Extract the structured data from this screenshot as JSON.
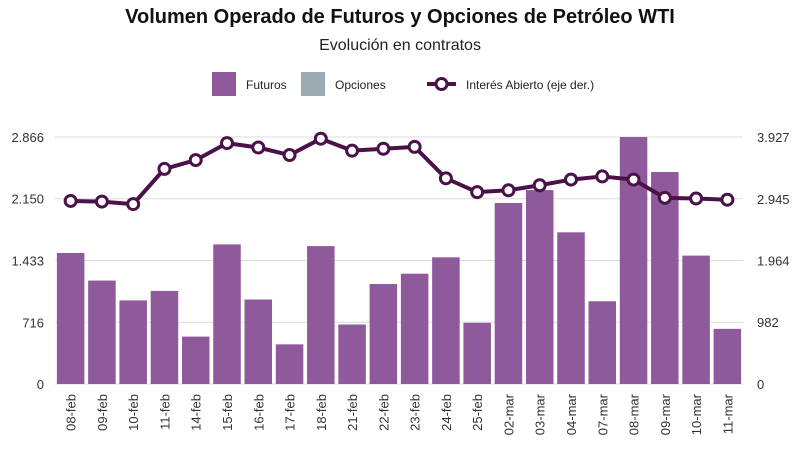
{
  "chart_data": {
    "type": "bar",
    "title": "Volumen Operado de Futuros y Opciones de Petróleo WTI",
    "subtitle": "Evolución en contratos",
    "categories": [
      "08-feb",
      "09-feb",
      "10-feb",
      "11-feb",
      "14-feb",
      "15-feb",
      "16-feb",
      "17-feb",
      "18-feb",
      "21-feb",
      "22-feb",
      "23-feb",
      "24-feb",
      "25-feb",
      "02-mar",
      "03-mar",
      "04-mar",
      "07-mar",
      "08-mar",
      "09-mar",
      "10-mar",
      "11-mar"
    ],
    "series": [
      {
        "name": "Futuros",
        "type": "bar",
        "axis": "left",
        "color": "#8e5a9b",
        "values": [
          1520,
          1200,
          970,
          1080,
          550,
          1620,
          980,
          460,
          1600,
          690,
          1160,
          1280,
          1470,
          710,
          2100,
          2250,
          1760,
          960,
          2866,
          2460,
          1490,
          640
        ]
      },
      {
        "name": "Opciones",
        "type": "bar",
        "axis": "left",
        "color": "#9aabb2",
        "values": [
          0,
          0,
          0,
          0,
          0,
          0,
          0,
          0,
          0,
          0,
          0,
          0,
          0,
          0,
          0,
          0,
          0,
          0,
          0,
          0,
          0,
          0
        ]
      },
      {
        "name": "Interés Abierto (eje der.)",
        "type": "line",
        "axis": "right",
        "color": "#4a1248",
        "values": [
          2910,
          2900,
          2860,
          3420,
          3560,
          3830,
          3760,
          3640,
          3900,
          3710,
          3740,
          3770,
          3270,
          3050,
          3080,
          3160,
          3250,
          3300,
          3250,
          2960,
          2950,
          2930
        ]
      }
    ],
    "y_left": {
      "ticks": [
        "0",
        "716",
        "1.433",
        "2.150",
        "2.866"
      ],
      "tick_values": [
        0,
        716,
        1433,
        2150,
        2866
      ],
      "lim": [
        0,
        2866
      ]
    },
    "y_right": {
      "ticks": [
        "0",
        "982",
        "1.964",
        "2.945",
        "3.927"
      ],
      "tick_values": [
        0,
        982,
        1964,
        2945,
        3927
      ],
      "lim": [
        0,
        3927
      ]
    },
    "grid": "horizontal",
    "legend_position": "top-center"
  }
}
